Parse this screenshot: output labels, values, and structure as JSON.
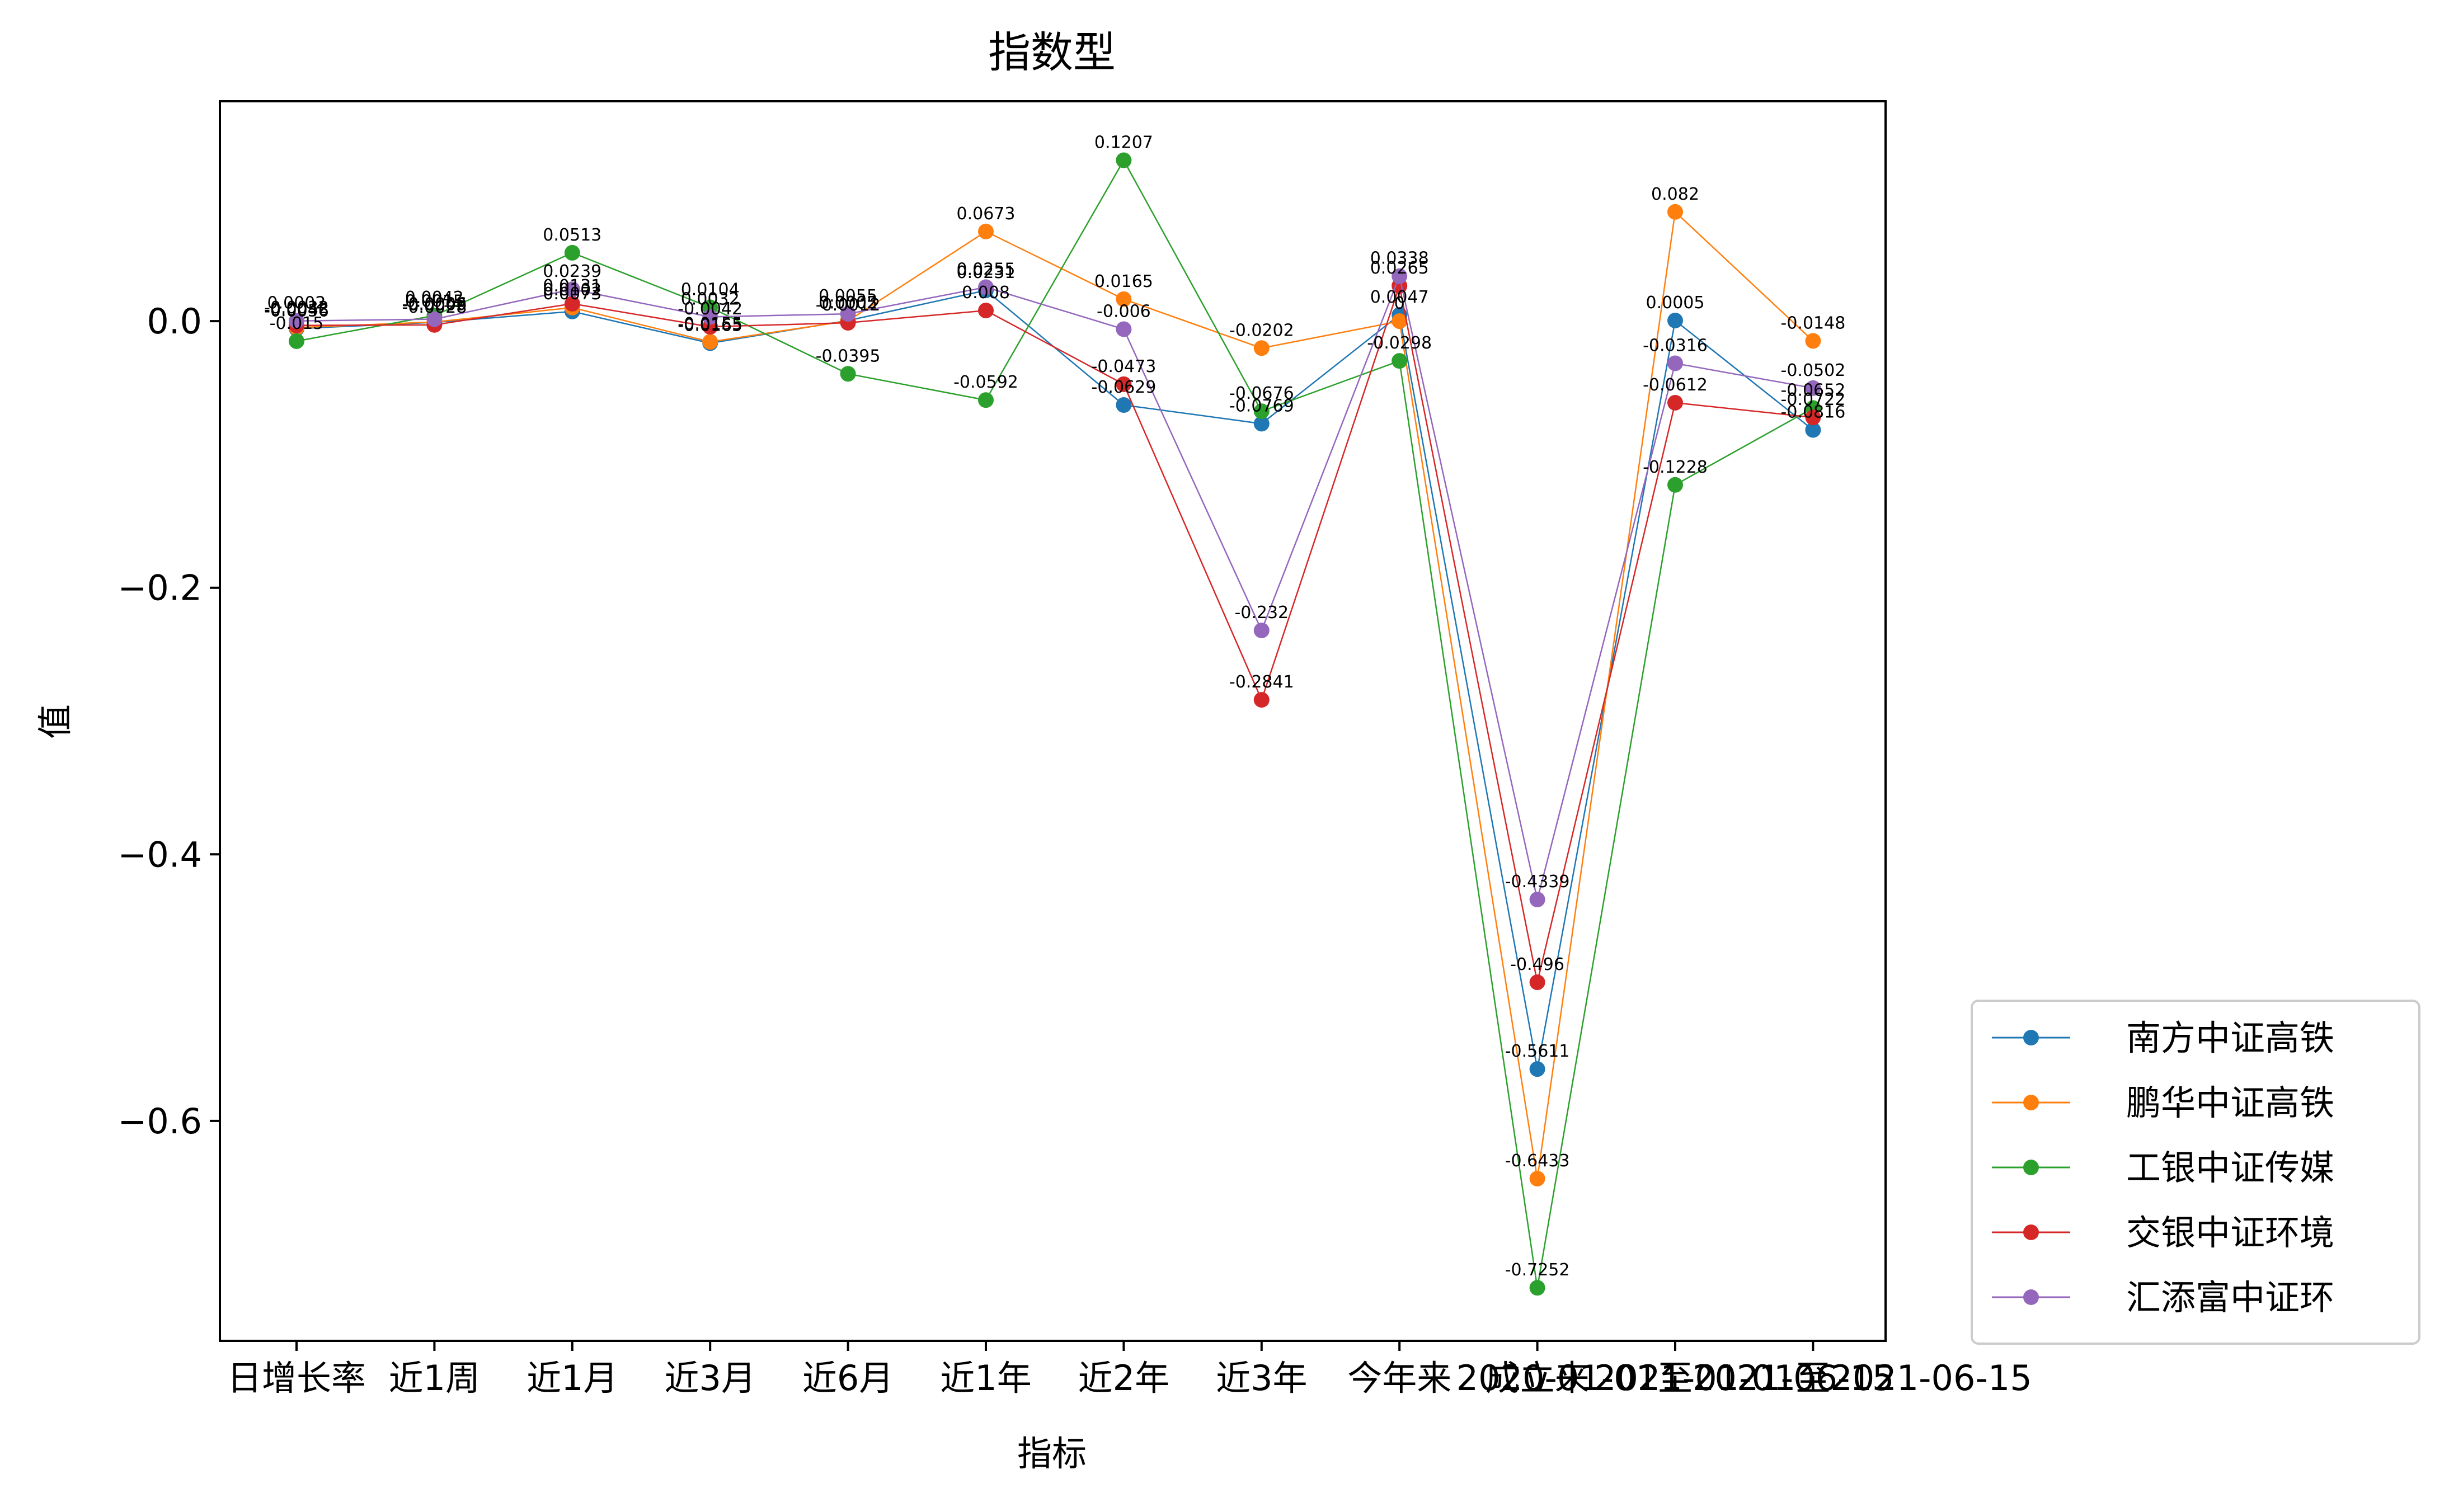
{
  "chart_data": {
    "type": "line",
    "title": "指数型",
    "xlabel": "指标",
    "ylabel": "值",
    "ylim": [
      -0.765,
      0.165
    ],
    "yticks": [
      -0.6,
      -0.4,
      -0.2,
      0.0
    ],
    "ytick_labels": [
      "−0.6",
      "−0.4",
      "−0.2",
      "0.0"
    ],
    "grid": false,
    "legend_position": "right-bottom outside",
    "categories": [
      "日增长率",
      "近1周",
      "近1月",
      "近3月",
      "近6月",
      "近1年",
      "近2年",
      "近3年",
      "今年来",
      "成立来",
      "2020-01-01至2021-06-15",
      "2021-01-01至2021-06-15"
    ],
    "series": [
      {
        "name": "南方中证高铁",
        "color": "#1f77b4",
        "values": [
          -0.0056,
          -0.0009,
          0.0073,
          -0.0165,
          0.0005,
          0.0231,
          -0.0629,
          -0.0769,
          0.0047,
          -0.5611,
          0.0005,
          -0.0816
        ],
        "labels": [
          "-0.0056",
          "-0.0009",
          "0.0073",
          "-0.0165",
          "0.0005",
          "0.0231",
          "-0.0629",
          "-0.0769",
          "0.0047",
          "-0.5611",
          "0.0005",
          "-0.0816"
        ]
      },
      {
        "name": "鹏华中证高铁",
        "color": "#ff7f0e",
        "values": [
          -0.0048,
          -0.0006,
          0.0102,
          -0.0155,
          0.0002,
          0.0673,
          0.0165,
          -0.0202,
          0.0,
          -0.6433,
          0.082,
          -0.0148
        ],
        "labels": [
          "-0.0048",
          "-0.0006",
          "0.0102",
          "-0.0155",
          "0.0002",
          "0.0673",
          "0.0165",
          "-0.0202",
          "0",
          "-0.6433",
          "0.082",
          "-0.0148"
        ]
      },
      {
        "name": "工银中证传媒",
        "color": "#2ca02c",
        "values": [
          -0.015,
          0.0042,
          0.0513,
          0.0104,
          -0.0395,
          -0.0592,
          0.1207,
          -0.0676,
          -0.0298,
          -0.7252,
          -0.1228,
          -0.0652
        ],
        "labels": [
          "-0.015",
          "0.0042",
          "0.0513",
          "0.0104",
          "-0.0395",
          "-0.0592",
          "0.1207",
          "-0.0676",
          "-0.0298",
          "-0.7252",
          "-0.1228",
          "-0.0652"
        ]
      },
      {
        "name": "交银中证环境",
        "color": "#d62728",
        "values": [
          -0.0032,
          -0.0028,
          0.0131,
          -0.0042,
          -0.0012,
          0.008,
          -0.0473,
          -0.2841,
          0.0265,
          -0.496,
          -0.0612,
          -0.0722
        ],
        "labels": [
          "-0.0032",
          "-0.0028",
          "0.0131",
          "-0.0042",
          "-0.0012",
          "0.008",
          "-0.0473",
          "-0.2841",
          "0.0265",
          "-0.496",
          "-0.0612",
          "-0.0722"
        ]
      },
      {
        "name": "汇添富中证环",
        "color": "#9467bd",
        "values": [
          0.0002,
          0.0015,
          0.0239,
          0.0032,
          0.0055,
          0.0255,
          -0.006,
          -0.232,
          0.0338,
          -0.4339,
          -0.0316,
          -0.0502
        ],
        "labels": [
          "0.0002",
          "0.0015",
          "0.0239",
          "0.0032",
          "0.0055",
          "0.0255",
          "-0.006",
          "-0.232",
          "0.0338",
          "-0.4339",
          "-0.0316",
          "-0.0502"
        ]
      }
    ]
  }
}
